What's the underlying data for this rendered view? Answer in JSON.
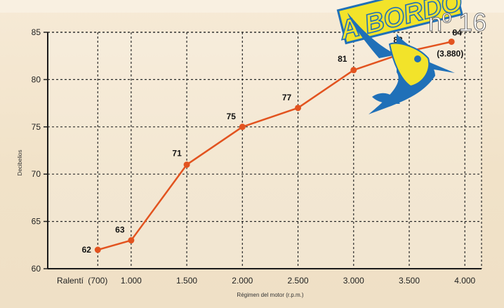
{
  "chart_data": {
    "type": "line",
    "xlabel": "Régimen del motor (r.p.m.)",
    "ylabel": "Decibelios",
    "x_special_label": "Ralentí",
    "x_tick_labels": [
      "(700)",
      "1.000",
      "1.500",
      "2.000",
      "2.500",
      "3.000",
      "3.500",
      "4.000"
    ],
    "x_tick_values": [
      700,
      1000,
      1500,
      2000,
      2500,
      3000,
      3500,
      4000
    ],
    "y_tick_labels": [
      "60",
      "65",
      "70",
      "75",
      "80",
      "85"
    ],
    "y_tick_values": [
      60,
      65,
      70,
      75,
      80,
      85
    ],
    "xlim": [
      250,
      4150
    ],
    "ylim": [
      60,
      85
    ],
    "grid": true,
    "series": [
      {
        "x": [
          700,
          1000,
          1500,
          2000,
          2500,
          3000,
          3500,
          3880
        ],
        "y": [
          62,
          63,
          71,
          75,
          77,
          81,
          83,
          84
        ],
        "point_labels": [
          "62",
          "63",
          "71",
          "75",
          "77",
          "81",
          "83",
          "84"
        ],
        "color": "#e2531f"
      }
    ],
    "annotations": [
      {
        "text": "(3.880)",
        "x": 3880,
        "y": 84
      }
    ]
  },
  "logo": {
    "wordmark": "A BORDO",
    "issue": "nº 16"
  }
}
